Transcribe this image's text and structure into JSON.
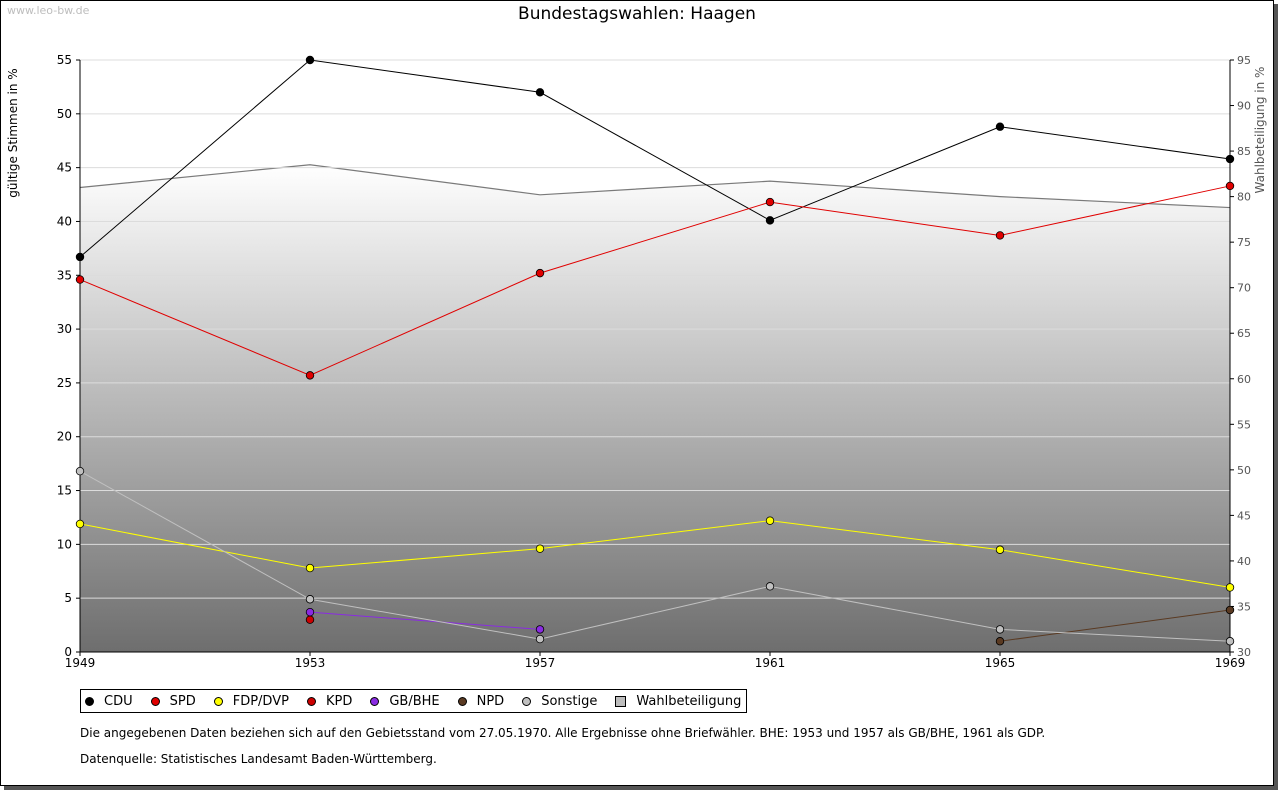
{
  "watermark": "www.leo-bw.de",
  "chart_data": {
    "type": "line",
    "title": "Bundestagswahlen: Haagen",
    "ylabel": "gültige Stimmen in %",
    "y2label": "Wahlbeteiligung in %",
    "x": [
      1949,
      1953,
      1957,
      1961,
      1965,
      1969
    ],
    "ylim": [
      0,
      55
    ],
    "yticks": [
      0,
      5,
      10,
      15,
      20,
      25,
      30,
      35,
      40,
      45,
      50,
      55
    ],
    "y2lim": [
      30,
      95
    ],
    "y2ticks": [
      30,
      35,
      40,
      45,
      50,
      55,
      60,
      65,
      70,
      75,
      80,
      85,
      90,
      95
    ],
    "series": [
      {
        "name": "CDU",
        "color": "#000000",
        "values": [
          36.7,
          55.0,
          52.0,
          40.1,
          48.8,
          45.8
        ]
      },
      {
        "name": "SPD",
        "color": "#e00000",
        "values": [
          34.6,
          25.7,
          35.2,
          41.8,
          38.7,
          43.3
        ]
      },
      {
        "name": "FDP/DVP",
        "color": "#ffff00",
        "values": [
          11.9,
          7.8,
          9.6,
          12.2,
          9.5,
          6.0
        ]
      },
      {
        "name": "KPD",
        "color": "#cc0000",
        "values": [
          null,
          3.0,
          null,
          null,
          null,
          null
        ]
      },
      {
        "name": "GB/BHE",
        "color": "#8a2be2",
        "values": [
          null,
          3.7,
          2.1,
          null,
          null,
          null
        ]
      },
      {
        "name": "NPD",
        "color": "#5a3a22",
        "values": [
          null,
          null,
          null,
          null,
          1.0,
          3.9
        ]
      },
      {
        "name": "Sonstige",
        "color": "#c0c0c0",
        "values": [
          16.8,
          4.9,
          1.2,
          6.1,
          2.1,
          1.0
        ]
      }
    ],
    "turnout": {
      "name": "Wahlbeteiligung",
      "values": [
        81.0,
        83.5,
        80.2,
        81.7,
        80.0,
        78.8
      ]
    },
    "legend_position": "bottom-left"
  },
  "note": "Die angegebenen Daten beziehen sich auf den Gebietsstand vom 27.05.1970. Alle Ergebnisse ohne Briefwähler. BHE: 1953 und 1957 als GB/BHE, 1961 als GDP.",
  "source": "Datenquelle: Statistisches Landesamt Baden-Württemberg."
}
